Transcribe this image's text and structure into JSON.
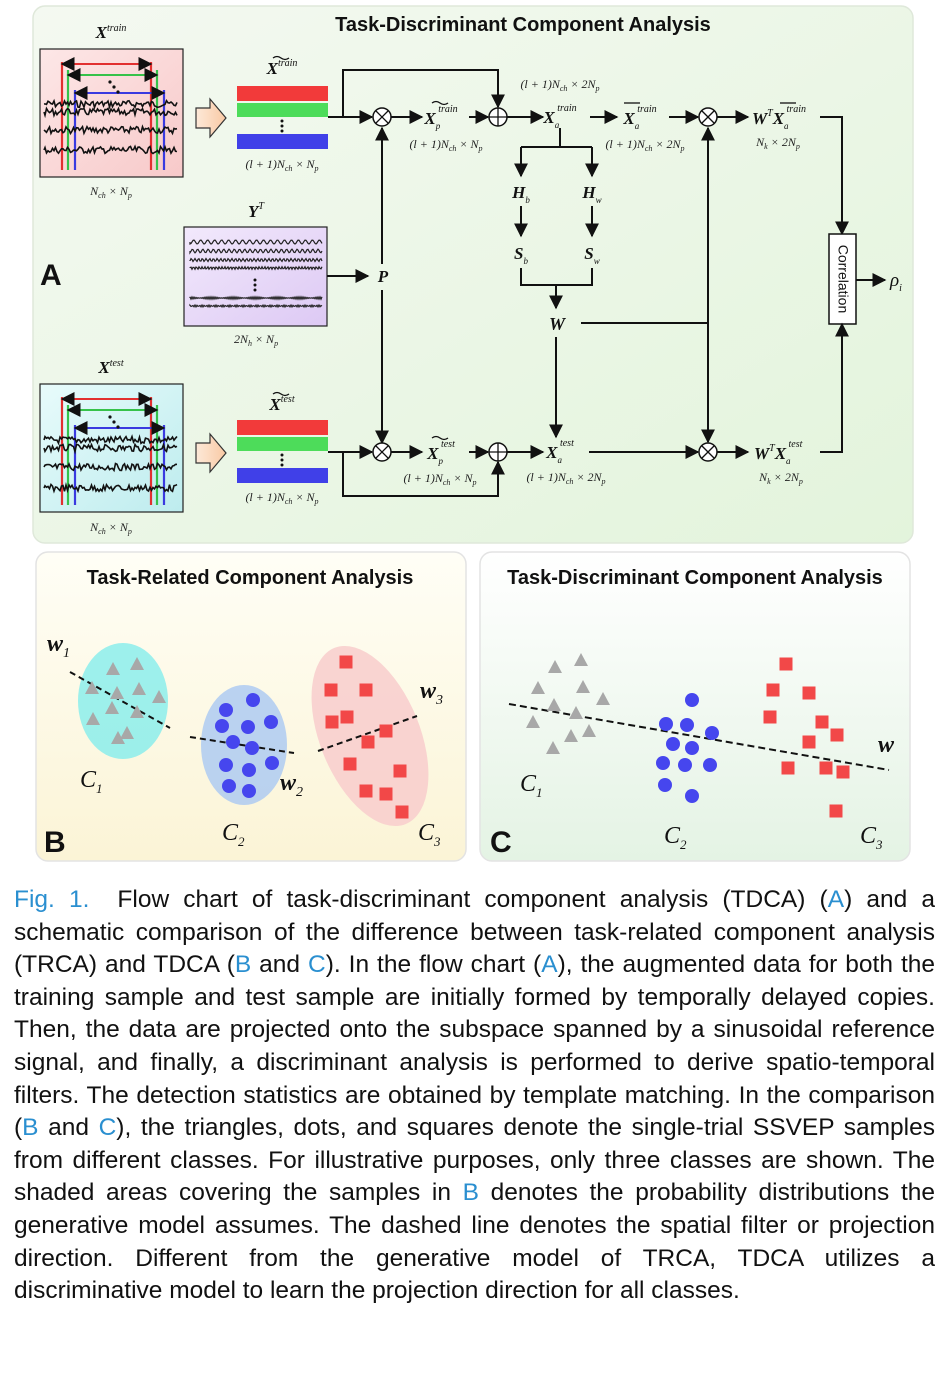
{
  "panel_a": {
    "letter": "A",
    "title": "Task-Discriminant Component Analysis",
    "x_train_base": "X",
    "x_train_sup": "train",
    "x_train_dim_base": "N",
    "x_train_dim_sub1": "ch",
    "x_train_dim_mid": " × N",
    "x_train_dim_sub2": "p",
    "xt_train_base": "X",
    "xt_train_sup": "train",
    "xt_train_dim": "(l + 1)N",
    "xt_train_dim_sub1": "ch",
    "xt_train_dim_mid": " × N",
    "xt_train_dim_sub2": "p",
    "y_base": "Y",
    "y_sup": "T",
    "y_dim": "2N",
    "y_dim_sub1": "h",
    "y_dim_mid": " × N",
    "y_dim_sub2": "p",
    "p_label": "P",
    "xp_train_base": "X",
    "xp_train_sub": "p",
    "xp_train_sup": "train",
    "xp_train_dim": "(l + 1)N",
    "xp_train_dim_sub1": "ch",
    "xp_train_dim_mid": " × N",
    "xp_train_dim_sub2": "p",
    "top_bypass_dim": "(l + 1)N",
    "top_bypass_sub1": "ch",
    "top_bypass_mid": " × 2N",
    "top_bypass_sub2": "p",
    "xa_train_base": "X",
    "xa_train_sub": "a",
    "xa_train_sup": "train",
    "xabar_train_base": "X",
    "xabar_train_sub": "a",
    "xabar_train_sup": "train",
    "xabar_train_dim": "(l + 1)N",
    "xabar_train_dim_sub1": "ch",
    "xabar_train_dim_mid": " × 2N",
    "xabar_train_dim_sub2": "p",
    "wt_train_base": "W",
    "wt_train_sup": "T",
    "wt_train_x": "X",
    "wt_train_xsub": "a",
    "wt_train_xsup": "train",
    "wt_train_dim": "N",
    "wt_train_dim_sub1": "k",
    "wt_train_dim_mid": " × 2N",
    "wt_train_dim_sub2": "p",
    "hb_base": "H",
    "hb_sub": "b",
    "hw_base": "H",
    "hw_sub": "w",
    "sb_base": "S",
    "sb_sub": "b",
    "sw_base": "S",
    "sw_sub": "w",
    "w_label": "W",
    "correlation": "Correlation",
    "rho_base": "ρ",
    "rho_sub": "i",
    "x_test_base": "X",
    "x_test_sup": "test",
    "x_test_dim": "N",
    "x_test_dim_sub1": "ch",
    "x_test_dim_mid": " × N",
    "x_test_dim_sub2": "p",
    "xt_test_base": "X",
    "xt_test_sup": "test",
    "xt_test_dim": "(l + 1)N",
    "xt_test_dim_sub1": "ch",
    "xt_test_dim_mid": " × N",
    "xt_test_dim_sub2": "p",
    "xp_test_base": "X",
    "xp_test_sub": "p",
    "xp_test_sup": "test",
    "xp_test_dim": "(l + 1)N",
    "xp_test_dim_sub1": "ch",
    "xp_test_dim_mid": " × N",
    "xp_test_dim_sub2": "p",
    "xa_test_base": "X",
    "xa_test_sub": "a",
    "xa_test_sup": "test",
    "xa_test_dim": "(l + 1)N",
    "xa_test_dim_sub1": "ch",
    "xa_test_dim_mid": " × 2N",
    "xa_test_dim_sub2": "p",
    "wt_test_base": "W",
    "wt_test_sup": "T",
    "wt_test_x": "X",
    "wt_test_xsub": "a",
    "wt_test_xsup": "test",
    "wt_test_dim": "N",
    "wt_test_dim_sub1": "k",
    "wt_test_dim_mid": " × 2N",
    "wt_test_dim_sub2": "p"
  },
  "panel_b": {
    "letter": "B",
    "title": "Task-Related Component Analysis",
    "w1_base": "w",
    "w1_sub": "1",
    "w2_base": "w",
    "w2_sub": "2",
    "w3_base": "w",
    "w3_sub": "3",
    "c1_base": "C",
    "c1_sub": "1",
    "c2_base": "C",
    "c2_sub": "2",
    "c3_base": "C",
    "c3_sub": "3"
  },
  "panel_c": {
    "letter": "C",
    "title": "Task-Discriminant Component Analysis",
    "w_label": "w",
    "c1_base": "C",
    "c1_sub": "1",
    "c2_base": "C",
    "c2_sub": "2",
    "c3_base": "C",
    "c3_sub": "3"
  },
  "colors": {
    "red": "#f23a3a",
    "green": "#4ddc5a",
    "blue": "#4040e8",
    "triangle": "#a8a8a8",
    "dot": "#4646ee",
    "square": "#f24848",
    "caption_accent": "#2a8fd0"
  },
  "caption": {
    "fig_label": "Fig. 1.",
    "t1": "Flow chart of task-discriminant component analysis (TDCA) (",
    "a1": "A",
    "t2": ") and a schematic comparison of the difference between task-related component analysis (TRCA) and TDCA (",
    "b1": "B",
    "t3": " and ",
    "c1": "C",
    "t4": "). In the flow chart (",
    "a2": "A",
    "t5": "), the augmented data for both the training sample and test sample are initially formed by temporally delayed copies. Then, the data are projected onto the subspace spanned by a sinusoidal reference signal, and finally, a discriminant analysis is performed to derive spatio-temporal filters. The detection statistics are obtained by template matching. In the comparison (",
    "b2": "B",
    "t6": " and ",
    "c2": "C",
    "t7": "), the triangles, dots, and squares denote the single-trial SSVEP samples from different classes. For illustrative purposes, only three classes are shown. The shaded areas covering the samples in ",
    "b3": "B",
    "t8": " denotes the probability distributions the generative model assumes. The dashed line denotes the spatial filter or projection direction. Different from the generative model of TRCA, TDCA utilizes a discriminative model to learn the projection direction for all classes."
  }
}
